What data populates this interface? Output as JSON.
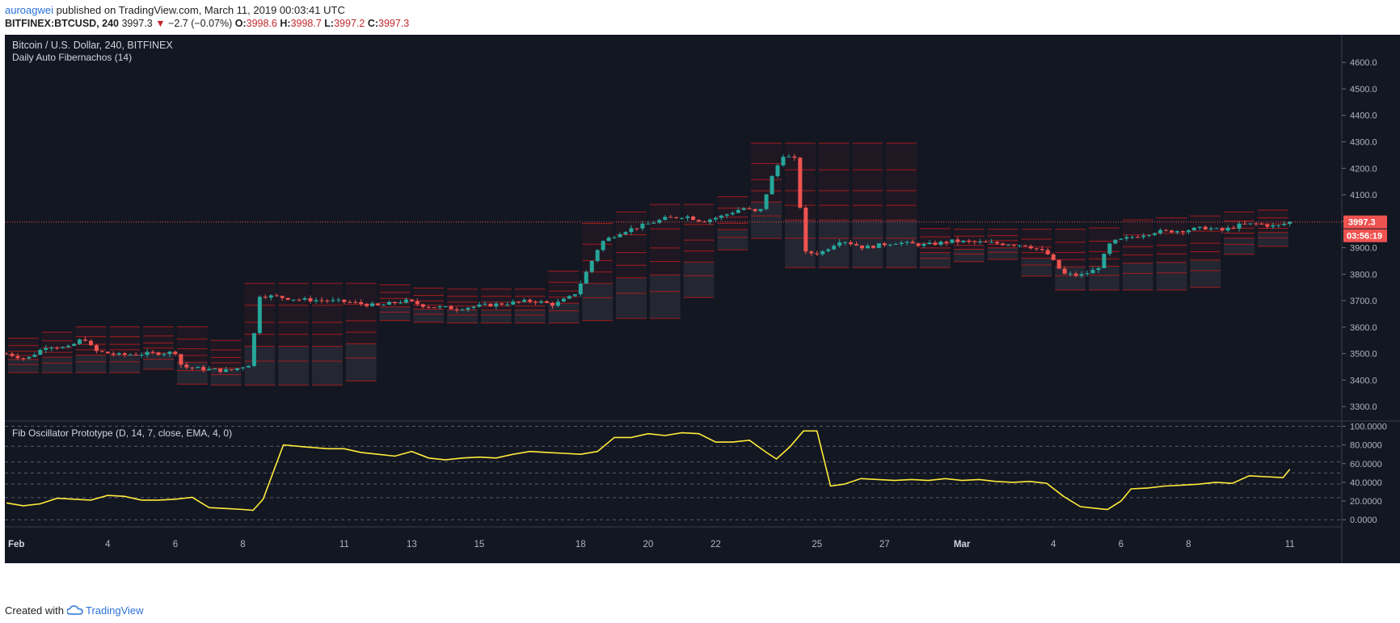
{
  "header": {
    "author": "auroagwei",
    "published_text": " published on TradingView.com, March 11, 2019 00:03:41 UTC",
    "symbol": "BITFINEX:BTCUSD, 240",
    "last": "3997.3",
    "change_arrow": "▼",
    "change": "−2.7 (−0.07%)",
    "o_label": "O:",
    "o_value": "3998.6",
    "h_label": "H:",
    "h_value": "3998.7",
    "l_label": "L:",
    "l_value": "3997.2",
    "c_label": "C:",
    "c_value": "3997.3"
  },
  "footer": {
    "created_with": "Created with",
    "brand": "TradingView",
    "logo_icon": "tradingview-cloud-icon"
  },
  "colors": {
    "background": "#131722",
    "up": "#26a69a",
    "down": "#ef5350",
    "fib_line": "#b71c1c",
    "oscillator": "#ffeb3b",
    "price_tag": "#ef5350"
  },
  "chart_data": [
    {
      "type": "candlestick",
      "title": "Bitcoin / U.S. Dollar, 240, BITFINEX",
      "indicator_label": "Daily Auto Fibernachos (14)",
      "ylim": [
        3270,
        4680
      ],
      "yticks": [
        3300,
        3400,
        3500,
        3600,
        3700,
        3800,
        3900,
        4000,
        4100,
        4200,
        4300,
        4400,
        4500,
        4600
      ],
      "ytick_labels": [
        "3300.0",
        "3400.0",
        "3500.0",
        "3600.0",
        "3700.0",
        "3800.0",
        "3900.0",
        "4000.0",
        "4100.0",
        "4200.0",
        "4300.0",
        "4400.0",
        "4500.0",
        "4600.0"
      ],
      "xticks": [
        {
          "label": "Feb",
          "day": 1
        },
        {
          "label": "4",
          "day": 4
        },
        {
          "label": "6",
          "day": 6
        },
        {
          "label": "8",
          "day": 8
        },
        {
          "label": "11",
          "day": 11
        },
        {
          "label": "13",
          "day": 13
        },
        {
          "label": "15",
          "day": 15
        },
        {
          "label": "18",
          "day": 18
        },
        {
          "label": "20",
          "day": 20
        },
        {
          "label": "22",
          "day": 22
        },
        {
          "label": "25",
          "day": 25
        },
        {
          "label": "27",
          "day": 27
        },
        {
          "label": "Mar",
          "day": 29
        },
        {
          "label": "4",
          "day": 32
        },
        {
          "label": "6",
          "day": 34
        },
        {
          "label": "8",
          "day": 36
        },
        {
          "label": "11",
          "day": 39
        }
      ],
      "xlim_days": [
        1,
        40.3
      ],
      "last_price": 3997.3,
      "last_price_label": "3997.3",
      "countdown_label": "03:56:19",
      "close_path": [
        [
          1,
          3500
        ],
        [
          1.6,
          3480
        ],
        [
          2.2,
          3530
        ],
        [
          2.8,
          3520
        ],
        [
          3.3,
          3560
        ],
        [
          3.6,
          3510
        ],
        [
          4.3,
          3495
        ],
        [
          5.2,
          3500
        ],
        [
          6,
          3505
        ],
        [
          6.2,
          3450
        ],
        [
          7,
          3440
        ],
        [
          7.6,
          3435
        ],
        [
          8.2,
          3460
        ],
        [
          8.5,
          3720
        ],
        [
          9,
          3715
        ],
        [
          9.6,
          3705
        ],
        [
          10.5,
          3700
        ],
        [
          11.1,
          3695
        ],
        [
          12,
          3680
        ],
        [
          12.8,
          3700
        ],
        [
          13.4,
          3680
        ],
        [
          14.3,
          3670
        ],
        [
          15,
          3680
        ],
        [
          15.8,
          3690
        ],
        [
          16.6,
          3700
        ],
        [
          17.2,
          3685
        ],
        [
          17.8,
          3720
        ],
        [
          18.1,
          3790
        ],
        [
          18.6,
          3920
        ],
        [
          19.2,
          3960
        ],
        [
          20,
          3990
        ],
        [
          20.5,
          4010
        ],
        [
          21.1,
          4020
        ],
        [
          21.6,
          4000
        ],
        [
          22.2,
          4020
        ],
        [
          22.8,
          4050
        ],
        [
          23.3,
          4030
        ],
        [
          23.7,
          4180
        ],
        [
          24,
          4250
        ],
        [
          24.4,
          4230
        ],
        [
          24.6,
          3880
        ],
        [
          25.1,
          3880
        ],
        [
          25.7,
          3930
        ],
        [
          26.4,
          3900
        ],
        [
          27.3,
          3920
        ],
        [
          28.2,
          3910
        ],
        [
          29,
          3925
        ],
        [
          29.8,
          3920
        ],
        [
          30.5,
          3915
        ],
        [
          31.2,
          3910
        ],
        [
          31.8,
          3880
        ],
        [
          32.3,
          3800
        ],
        [
          32.8,
          3795
        ],
        [
          33.3,
          3820
        ],
        [
          33.7,
          3920
        ],
        [
          34.3,
          3940
        ],
        [
          35,
          3960
        ],
        [
          35.8,
          3965
        ],
        [
          36.5,
          3975
        ],
        [
          37,
          3965
        ],
        [
          37.5,
          3985
        ],
        [
          38,
          3990
        ],
        [
          38.6,
          3980
        ],
        [
          39,
          3997.3
        ]
      ],
      "fib_zone_levels": [
        0,
        0.236,
        0.382,
        0.5,
        0.618,
        0.786,
        1
      ]
    },
    {
      "type": "line",
      "title": "Fib Oscillator Prototype (D, 14, 7, close, EMA, 4, 0)",
      "ylim": [
        -5,
        103
      ],
      "yticks": [
        0,
        20,
        40,
        60,
        80,
        100
      ],
      "ytick_labels": [
        "0.0000",
        "20.0000",
        "40.0000",
        "60.0000",
        "80.0000",
        "100.0000"
      ],
      "dashed_levels": [
        0,
        23.6,
        38.2,
        50,
        61.8,
        78.6,
        100
      ],
      "series": [
        {
          "values": [
            [
              1,
              18
            ],
            [
              1.5,
              15
            ],
            [
              2,
              17
            ],
            [
              2.5,
              23
            ],
            [
              3,
              22
            ],
            [
              3.5,
              21
            ],
            [
              4,
              26
            ],
            [
              4.5,
              25
            ],
            [
              5,
              21
            ],
            [
              5.5,
              21
            ],
            [
              6,
              22
            ],
            [
              6.5,
              24
            ],
            [
              7,
              13
            ],
            [
              7.5,
              12
            ],
            [
              8,
              11
            ],
            [
              8.3,
              10
            ],
            [
              8.6,
              22
            ],
            [
              9.2,
              80
            ],
            [
              9.8,
              78
            ],
            [
              10.5,
              76
            ],
            [
              11,
              76
            ],
            [
              11.5,
              72
            ],
            [
              12,
              70
            ],
            [
              12.5,
              68
            ],
            [
              13,
              73
            ],
            [
              13.5,
              66
            ],
            [
              14,
              64
            ],
            [
              14.5,
              66
            ],
            [
              15,
              67
            ],
            [
              15.5,
              66
            ],
            [
              16,
              70
            ],
            [
              16.5,
              73
            ],
            [
              17,
              72
            ],
            [
              17.5,
              71
            ],
            [
              18,
              70
            ],
            [
              18.5,
              73
            ],
            [
              19,
              88
            ],
            [
              19.5,
              88
            ],
            [
              20,
              92
            ],
            [
              20.5,
              90
            ],
            [
              21,
              93
            ],
            [
              21.5,
              92
            ],
            [
              22,
              83
            ],
            [
              22.5,
              83
            ],
            [
              23,
              85
            ],
            [
              23.5,
              72
            ],
            [
              23.8,
              65
            ],
            [
              24.2,
              78
            ],
            [
              24.6,
              95
            ],
            [
              25,
              95
            ],
            [
              25.4,
              36
            ],
            [
              25.8,
              38
            ],
            [
              26.3,
              44
            ],
            [
              26.8,
              43
            ],
            [
              27.3,
              42
            ],
            [
              27.8,
              43
            ],
            [
              28.3,
              42
            ],
            [
              28.8,
              44
            ],
            [
              29.3,
              42
            ],
            [
              29.8,
              43
            ],
            [
              30.3,
              41
            ],
            [
              30.8,
              40
            ],
            [
              31.3,
              41
            ],
            [
              31.8,
              39
            ],
            [
              32.3,
              25
            ],
            [
              32.8,
              14
            ],
            [
              33.3,
              12
            ],
            [
              33.6,
              11
            ],
            [
              34,
              20
            ],
            [
              34.3,
              33
            ],
            [
              34.8,
              34
            ],
            [
              35.3,
              36
            ],
            [
              35.8,
              37
            ],
            [
              36.3,
              38
            ],
            [
              36.8,
              40
            ],
            [
              37.3,
              39
            ],
            [
              37.8,
              47
            ],
            [
              38.3,
              46
            ],
            [
              38.8,
              45
            ],
            [
              39,
              54
            ]
          ]
        }
      ]
    }
  ]
}
